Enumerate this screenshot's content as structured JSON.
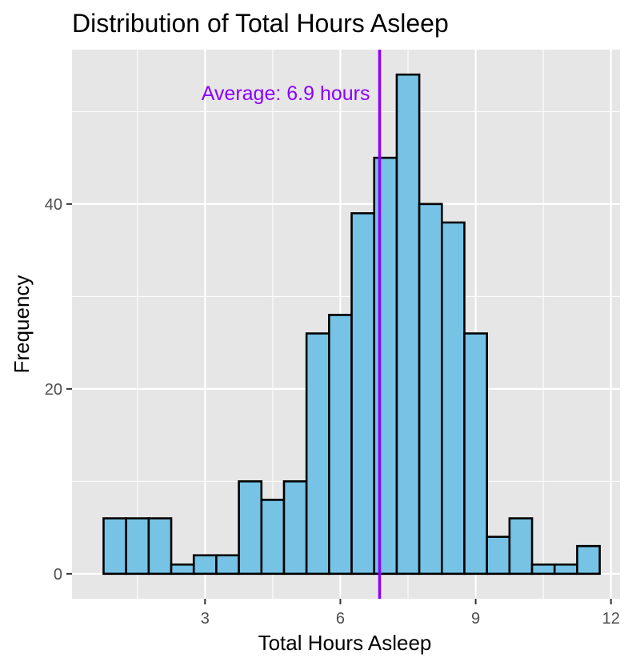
{
  "chart_data": {
    "type": "bar",
    "title": "Distribution of Total Hours Asleep",
    "xlabel": "Total Hours Asleep",
    "ylabel": "Frequency",
    "xlim": [
      0.05,
      12.2
    ],
    "ylim": [
      -2.7,
      56.7
    ],
    "x_ticks": [
      3,
      6,
      9,
      12
    ],
    "y_ticks": [
      0,
      20,
      40
    ],
    "x_ticks_labels": [
      "3",
      "6",
      "9",
      "12"
    ],
    "y_ticks_labels": [
      "0",
      "20",
      "40"
    ],
    "grid": true,
    "bin_width": 0.5,
    "bins": [
      {
        "x0": 0.75,
        "x1": 1.25,
        "count": 6
      },
      {
        "x0": 1.25,
        "x1": 1.75,
        "count": 6
      },
      {
        "x0": 1.75,
        "x1": 2.25,
        "count": 6
      },
      {
        "x0": 2.25,
        "x1": 2.75,
        "count": 1
      },
      {
        "x0": 2.75,
        "x1": 3.25,
        "count": 2
      },
      {
        "x0": 3.25,
        "x1": 3.75,
        "count": 2
      },
      {
        "x0": 3.75,
        "x1": 4.25,
        "count": 10
      },
      {
        "x0": 4.25,
        "x1": 4.75,
        "count": 8
      },
      {
        "x0": 4.75,
        "x1": 5.25,
        "count": 10
      },
      {
        "x0": 5.25,
        "x1": 5.75,
        "count": 26
      },
      {
        "x0": 5.75,
        "x1": 6.25,
        "count": 28
      },
      {
        "x0": 6.25,
        "x1": 6.75,
        "count": 39
      },
      {
        "x0": 6.75,
        "x1": 7.25,
        "count": 45
      },
      {
        "x0": 7.25,
        "x1": 7.75,
        "count": 54
      },
      {
        "x0": 7.75,
        "x1": 8.25,
        "count": 40
      },
      {
        "x0": 8.25,
        "x1": 8.75,
        "count": 38
      },
      {
        "x0": 8.75,
        "x1": 9.25,
        "count": 26
      },
      {
        "x0": 9.25,
        "x1": 9.75,
        "count": 4
      },
      {
        "x0": 9.75,
        "x1": 10.25,
        "count": 6
      },
      {
        "x0": 10.25,
        "x1": 10.75,
        "count": 1
      },
      {
        "x0": 10.75,
        "x1": 11.25,
        "count": 1
      },
      {
        "x0": 11.25,
        "x1": 11.75,
        "count": 3
      }
    ],
    "mean_line": {
      "x": 6.87,
      "label": "Average: 6.9 hours",
      "color": "#8b00ff"
    },
    "bar_fill": "#76c3e6",
    "bar_stroke": "#000000",
    "panel_bg": "#e6e6e6",
    "grid_color": "#ffffff"
  }
}
